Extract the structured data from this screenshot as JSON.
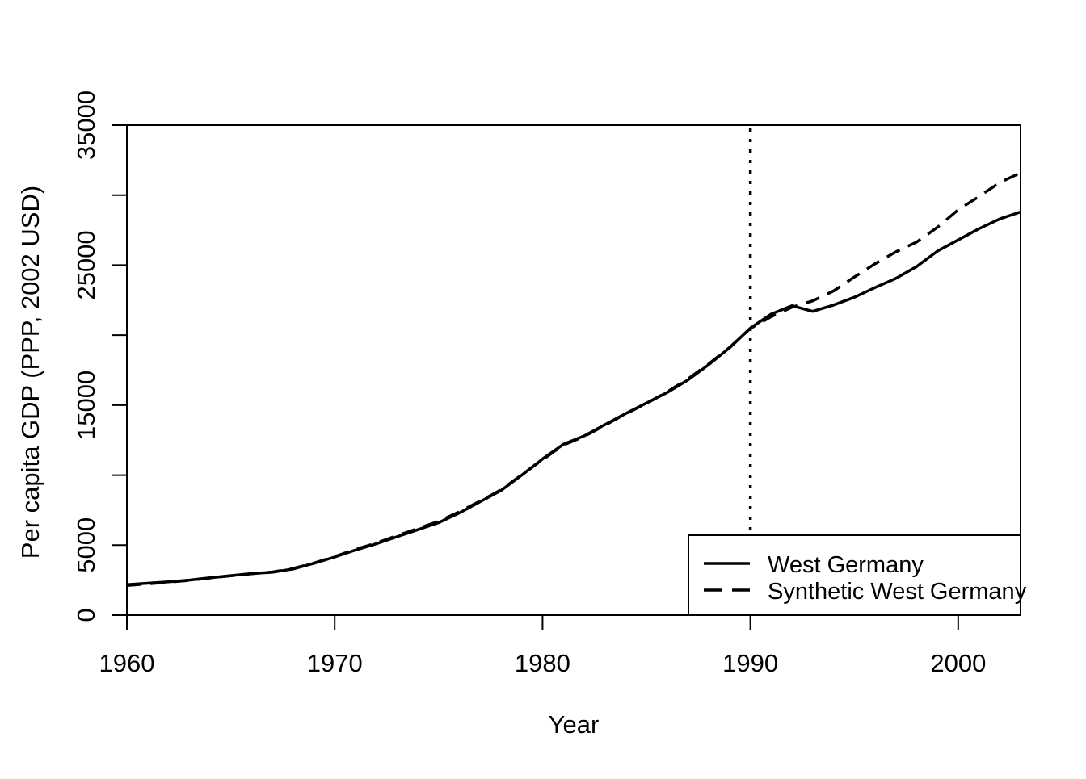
{
  "figure": {
    "background_color": "#ffffff",
    "line_color": "#000000",
    "text_color": "#000000"
  },
  "chart_data": {
    "type": "line",
    "title": "",
    "xlabel": "Year",
    "ylabel": "Per capita GDP (PPP, 2002 USD)",
    "xlim": [
      1960,
      2003
    ],
    "ylim": [
      0,
      35000
    ],
    "grid": false,
    "x_ticks": [
      {
        "v": 1960,
        "label": "1960"
      },
      {
        "v": 1970,
        "label": "1970"
      },
      {
        "v": 1980,
        "label": "1980"
      },
      {
        "v": 1990,
        "label": "1990"
      },
      {
        "v": 2000,
        "label": "2000"
      }
    ],
    "y_ticks": [
      {
        "v": 0,
        "label": "0"
      },
      {
        "v": 5000,
        "label": "5000"
      },
      {
        "v": 10000,
        "label": ""
      },
      {
        "v": 15000,
        "label": "15000"
      },
      {
        "v": 20000,
        "label": ""
      },
      {
        "v": 25000,
        "label": "25000"
      },
      {
        "v": 30000,
        "label": ""
      },
      {
        "v": 35000,
        "label": "35000"
      }
    ],
    "reference_line": {
      "x": 1990,
      "style": "dotted"
    },
    "years": [
      1960,
      1961,
      1962,
      1963,
      1964,
      1965,
      1966,
      1967,
      1968,
      1969,
      1970,
      1971,
      1972,
      1973,
      1974,
      1975,
      1976,
      1977,
      1978,
      1979,
      1980,
      1981,
      1982,
      1983,
      1984,
      1985,
      1986,
      1987,
      1988,
      1989,
      1990,
      1991,
      1992,
      1993,
      1994,
      1995,
      1996,
      1997,
      1998,
      1999,
      2000,
      2001,
      2002,
      2003
    ],
    "series": [
      {
        "name": "West Germany",
        "style": "solid",
        "values": [
          2180,
          2280,
          2380,
          2500,
          2670,
          2820,
          2970,
          3060,
          3300,
          3700,
          4150,
          4650,
          5100,
          5600,
          6100,
          6600,
          7300,
          8100,
          8900,
          10000,
          11150,
          12200,
          12800,
          13600,
          14400,
          15150,
          15900,
          16800,
          17900,
          19100,
          20500,
          21500,
          22100,
          21700,
          22150,
          22700,
          23400,
          24050,
          24900,
          26000,
          26800,
          27600,
          28300,
          28800
        ]
      },
      {
        "name": "Synthetic West Germany",
        "style": "dashed",
        "values": [
          2120,
          2230,
          2350,
          2480,
          2650,
          2810,
          2960,
          3080,
          3330,
          3720,
          4180,
          4700,
          5150,
          5680,
          6180,
          6700,
          7380,
          8150,
          8950,
          10020,
          11100,
          12150,
          12760,
          13560,
          14380,
          15120,
          15950,
          16880,
          17950,
          19120,
          20480,
          21320,
          22000,
          22450,
          23150,
          24150,
          25100,
          25950,
          26650,
          27700,
          28950,
          29900,
          30900,
          31600
        ]
      }
    ],
    "legend": {
      "position": "bottom-right",
      "items": [
        "West Germany",
        "Synthetic West Germany"
      ]
    }
  }
}
